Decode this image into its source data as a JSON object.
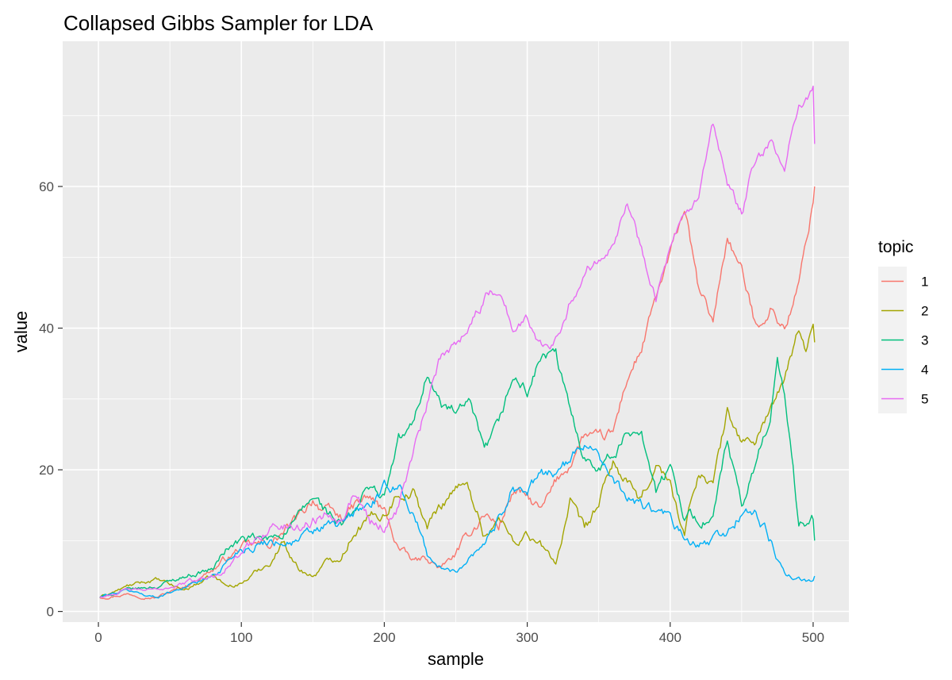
{
  "chart_data": {
    "type": "line",
    "title": "Collapsed Gibbs Sampler for LDA",
    "xlabel": "sample",
    "ylabel": "value",
    "xlim": [
      -25,
      525
    ],
    "ylim": [
      -1.5,
      80.5
    ],
    "xticks": [
      0,
      100,
      200,
      300,
      400,
      500
    ],
    "yticks": [
      0,
      20,
      40,
      60
    ],
    "xminor": [
      50,
      150,
      250,
      350,
      450
    ],
    "yminor": [
      10,
      30,
      50,
      70
    ],
    "grid": true,
    "legend": {
      "title": "topic",
      "position": "right"
    },
    "series": [
      {
        "name": "1",
        "color": "#F8766D",
        "points": [
          [
            1,
            2
          ],
          [
            20,
            2.5
          ],
          [
            40,
            2
          ],
          [
            60,
            3.5
          ],
          [
            80,
            6
          ],
          [
            100,
            9
          ],
          [
            120,
            9.5
          ],
          [
            140,
            13
          ],
          [
            150,
            16
          ],
          [
            160,
            14
          ],
          [
            170,
            13
          ],
          [
            180,
            15
          ],
          [
            190,
            16
          ],
          [
            200,
            14
          ],
          [
            210,
            9
          ],
          [
            220,
            7
          ],
          [
            230,
            7.5
          ],
          [
            240,
            6
          ],
          [
            250,
            8
          ],
          [
            260,
            11
          ],
          [
            270,
            14
          ],
          [
            280,
            12
          ],
          [
            290,
            17
          ],
          [
            300,
            16
          ],
          [
            310,
            14
          ],
          [
            320,
            18
          ],
          [
            330,
            21
          ],
          [
            340,
            25
          ],
          [
            350,
            24
          ],
          [
            360,
            25
          ],
          [
            370,
            33
          ],
          [
            380,
            37
          ],
          [
            390,
            44
          ],
          [
            400,
            50
          ],
          [
            410,
            57
          ],
          [
            420,
            45
          ],
          [
            430,
            41
          ],
          [
            440,
            53
          ],
          [
            450,
            48
          ],
          [
            460,
            40
          ],
          [
            470,
            43
          ],
          [
            480,
            40
          ],
          [
            490,
            46
          ],
          [
            500,
            58
          ],
          [
            501,
            60
          ]
        ]
      },
      {
        "name": "2",
        "color": "#A3A500",
        "points": [
          [
            1,
            2
          ],
          [
            20,
            3.5
          ],
          [
            40,
            4.5
          ],
          [
            60,
            3
          ],
          [
            80,
            5
          ],
          [
            90,
            3.5
          ],
          [
            100,
            4
          ],
          [
            120,
            7
          ],
          [
            130,
            10
          ],
          [
            140,
            6
          ],
          [
            150,
            5
          ],
          [
            160,
            7
          ],
          [
            170,
            8
          ],
          [
            180,
            12
          ],
          [
            190,
            13
          ],
          [
            200,
            14
          ],
          [
            210,
            17
          ],
          [
            220,
            17
          ],
          [
            230,
            12
          ],
          [
            240,
            15
          ],
          [
            250,
            18
          ],
          [
            260,
            17
          ],
          [
            270,
            11
          ],
          [
            280,
            13
          ],
          [
            290,
            10
          ],
          [
            300,
            11
          ],
          [
            310,
            9
          ],
          [
            320,
            7
          ],
          [
            330,
            15
          ],
          [
            340,
            11
          ],
          [
            350,
            15
          ],
          [
            360,
            21
          ],
          [
            370,
            18
          ],
          [
            380,
            15
          ],
          [
            390,
            21
          ],
          [
            400,
            18
          ],
          [
            410,
            11
          ],
          [
            420,
            20
          ],
          [
            430,
            18
          ],
          [
            440,
            28
          ],
          [
            450,
            24
          ],
          [
            460,
            24
          ],
          [
            470,
            29
          ],
          [
            480,
            32
          ],
          [
            490,
            40
          ],
          [
            495,
            36
          ],
          [
            500,
            41
          ],
          [
            501,
            38
          ]
        ]
      },
      {
        "name": "3",
        "color": "#00BF7D",
        "points": [
          [
            1,
            2
          ],
          [
            20,
            3
          ],
          [
            40,
            3.5
          ],
          [
            60,
            5
          ],
          [
            80,
            6
          ],
          [
            90,
            9
          ],
          [
            100,
            10
          ],
          [
            120,
            10
          ],
          [
            140,
            13
          ],
          [
            150,
            16
          ],
          [
            160,
            14
          ],
          [
            170,
            12
          ],
          [
            180,
            14
          ],
          [
            190,
            18
          ],
          [
            200,
            16
          ],
          [
            210,
            24
          ],
          [
            220,
            26
          ],
          [
            230,
            34
          ],
          [
            240,
            29
          ],
          [
            250,
            28
          ],
          [
            260,
            29
          ],
          [
            270,
            22
          ],
          [
            280,
            26
          ],
          [
            290,
            33
          ],
          [
            300,
            31
          ],
          [
            310,
            36
          ],
          [
            320,
            36
          ],
          [
            330,
            28
          ],
          [
            340,
            22
          ],
          [
            350,
            21
          ],
          [
            360,
            22
          ],
          [
            370,
            25
          ],
          [
            380,
            26
          ],
          [
            390,
            17
          ],
          [
            400,
            20
          ],
          [
            410,
            14
          ],
          [
            420,
            13
          ],
          [
            430,
            13
          ],
          [
            440,
            24
          ],
          [
            450,
            14
          ],
          [
            460,
            21
          ],
          [
            470,
            28
          ],
          [
            475,
            35
          ],
          [
            480,
            31
          ],
          [
            490,
            12
          ],
          [
            500,
            13
          ],
          [
            501,
            10
          ]
        ]
      },
      {
        "name": "4",
        "color": "#00B0F6",
        "points": [
          [
            1,
            2
          ],
          [
            20,
            3
          ],
          [
            40,
            2
          ],
          [
            60,
            3.5
          ],
          [
            80,
            5
          ],
          [
            100,
            9
          ],
          [
            120,
            10
          ],
          [
            140,
            10
          ],
          [
            150,
            11
          ],
          [
            160,
            12
          ],
          [
            170,
            12
          ],
          [
            180,
            14
          ],
          [
            190,
            15
          ],
          [
            200,
            17
          ],
          [
            210,
            18
          ],
          [
            220,
            14
          ],
          [
            230,
            8
          ],
          [
            240,
            6
          ],
          [
            250,
            5.5
          ],
          [
            260,
            8
          ],
          [
            270,
            10
          ],
          [
            280,
            13
          ],
          [
            290,
            18
          ],
          [
            300,
            17
          ],
          [
            310,
            19
          ],
          [
            320,
            20
          ],
          [
            330,
            21
          ],
          [
            340,
            24
          ],
          [
            350,
            23
          ],
          [
            360,
            18
          ],
          [
            370,
            16
          ],
          [
            380,
            15
          ],
          [
            390,
            14
          ],
          [
            400,
            13
          ],
          [
            410,
            10
          ],
          [
            420,
            9
          ],
          [
            430,
            10
          ],
          [
            440,
            11
          ],
          [
            450,
            14
          ],
          [
            460,
            14
          ],
          [
            470,
            10
          ],
          [
            480,
            5
          ],
          [
            490,
            4.5
          ],
          [
            500,
            4
          ],
          [
            501,
            5
          ]
        ]
      },
      {
        "name": "5",
        "color": "#E76BF3",
        "points": [
          [
            1,
            2
          ],
          [
            20,
            3
          ],
          [
            40,
            3
          ],
          [
            60,
            4
          ],
          [
            80,
            5
          ],
          [
            100,
            8
          ],
          [
            120,
            12
          ],
          [
            140,
            12
          ],
          [
            160,
            14
          ],
          [
            170,
            14
          ],
          [
            180,
            17
          ],
          [
            190,
            13
          ],
          [
            200,
            12
          ],
          [
            210,
            15
          ],
          [
            220,
            22
          ],
          [
            230,
            29
          ],
          [
            240,
            36
          ],
          [
            250,
            38
          ],
          [
            260,
            41
          ],
          [
            270,
            44
          ],
          [
            280,
            46
          ],
          [
            290,
            40
          ],
          [
            300,
            41
          ],
          [
            310,
            38
          ],
          [
            320,
            39
          ],
          [
            330,
            44
          ],
          [
            340,
            48
          ],
          [
            350,
            50
          ],
          [
            360,
            53
          ],
          [
            370,
            58
          ],
          [
            380,
            51
          ],
          [
            390,
            45
          ],
          [
            400,
            51
          ],
          [
            410,
            55
          ],
          [
            420,
            58
          ],
          [
            430,
            68
          ],
          [
            440,
            60
          ],
          [
            450,
            56
          ],
          [
            460,
            64
          ],
          [
            470,
            66
          ],
          [
            480,
            62
          ],
          [
            490,
            72
          ],
          [
            500,
            74
          ],
          [
            501,
            66
          ]
        ]
      }
    ]
  }
}
